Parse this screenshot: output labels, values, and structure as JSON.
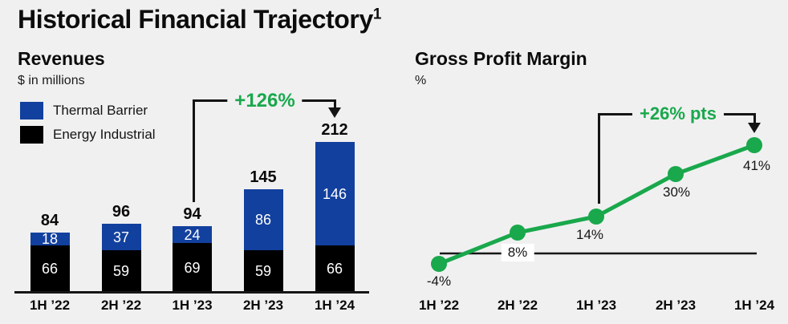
{
  "header": {
    "title": "Historical Financial Trajectory",
    "footnote_marker": "1"
  },
  "sections": {
    "revenues": {
      "title": "Revenues",
      "subtitle": "$ in millions"
    },
    "margin": {
      "title": "Gross Profit Margin",
      "subtitle": "%"
    }
  },
  "colors": {
    "background": "#F0F0F1",
    "thermal_barrier_blue": "#12409E",
    "energy_industrial_black": "#000000",
    "line_green": "#19A84C",
    "annotation_green": "#19A84C",
    "axis_black": "#141414"
  },
  "chart_data": [
    {
      "type": "bar",
      "stacked": true,
      "title": "Revenues",
      "ylabel": "$ in millions",
      "categories": [
        "1H ’22",
        "2H ’22",
        "1H ’23",
        "2H ’23",
        "1H ’24"
      ],
      "series": [
        {
          "name": "Energy Industrial",
          "color": "#000000",
          "values": [
            66,
            59,
            69,
            59,
            66
          ]
        },
        {
          "name": "Thermal Barrier",
          "color": "#12409E",
          "values": [
            18,
            37,
            24,
            86,
            146
          ]
        }
      ],
      "totals": [
        84,
        96,
        94,
        145,
        212
      ],
      "value_labels": "inside, white",
      "legend_position": "top-left",
      "annotation": {
        "text": "+126%",
        "from": "1H ’23",
        "to": "1H ’24"
      }
    },
    {
      "type": "line",
      "title": "Gross Profit Margin",
      "ylabel": "%",
      "categories": [
        "1H ’22",
        "2H ’22",
        "1H ’23",
        "2H ’23",
        "1H ’24"
      ],
      "values": [
        -4,
        8,
        14,
        30,
        41
      ],
      "point_labels": [
        "-4%",
        "8%",
        "14%",
        "30%",
        "41%"
      ],
      "color": "#19A84C",
      "baseline": 0,
      "grid": false,
      "annotation": {
        "text": "+26% pts",
        "from": "1H ’23",
        "to": "1H ’24"
      }
    }
  ]
}
